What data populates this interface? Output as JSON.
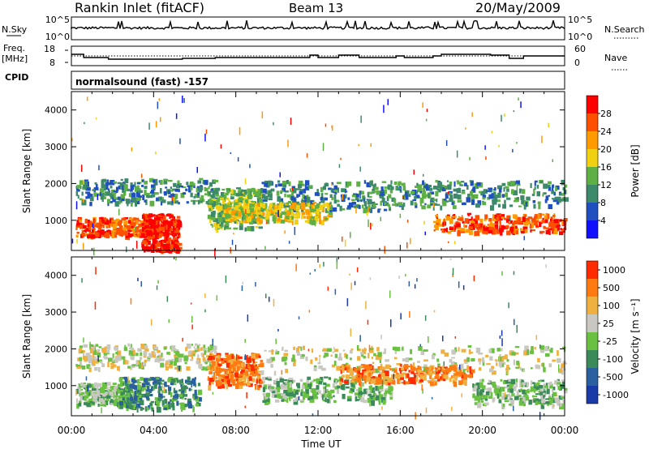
{
  "header": {
    "title": "Rankin Inlet (fitACF)",
    "beam": "Beam 13",
    "date": "20/May/2009"
  },
  "summary": {
    "nsky_label": "N.Sky",
    "nsky_ticks": [
      "10^5",
      "10^0"
    ],
    "nsearch_label": "N.Search",
    "nsearch_ticks": [
      "10^5",
      "10^0"
    ],
    "freq_label": "Freq.",
    "freq_unit": "[MHz]",
    "freq_ticks": [
      "18",
      "8"
    ],
    "nave_label": "Nave",
    "nave_ticks": [
      "60",
      "0"
    ],
    "cpid_label": "CPID",
    "cpid_value": "normalsound (fast) -157"
  },
  "chart_data": [
    {
      "type": "heatmap",
      "name": "power",
      "ylabel": "Slant Range [km]",
      "xlabel": "Time UT",
      "xticks": [
        "00:00",
        "04:00",
        "08:00",
        "12:00",
        "16:00",
        "20:00",
        "00:00"
      ],
      "xlim_hours": [
        0,
        24
      ],
      "yticks": [
        1000,
        2000,
        3000,
        4000
      ],
      "ylim": [
        180,
        4500
      ],
      "colorbar": {
        "label": "Power [dB]",
        "ticks": [
          "4",
          "8",
          "12",
          "16",
          "20",
          "24",
          "28"
        ],
        "colors": [
          "#1010ff",
          "#2050c0",
          "#3d8a6a",
          "#5fb044",
          "#f0d010",
          "#ff9a00",
          "#ff5000",
          "#ff0000"
        ]
      },
      "bands": [
        {
          "t0": 0.2,
          "t1": 4.2,
          "r0": 600,
          "r1": 1100,
          "cls": 6
        },
        {
          "t0": 3.4,
          "t1": 5.2,
          "r0": 180,
          "r1": 1200,
          "cls": 7
        },
        {
          "t0": 0.2,
          "t1": 7.0,
          "r0": 1500,
          "r1": 2150,
          "cls": 2
        },
        {
          "t0": 6.6,
          "t1": 9.2,
          "r0": 800,
          "r1": 1900,
          "cls": 3
        },
        {
          "t0": 9.2,
          "t1": 15.6,
          "r0": 1300,
          "r1": 2100,
          "cls": 2
        },
        {
          "t0": 15.6,
          "t1": 24.0,
          "r0": 1400,
          "r1": 2100,
          "cls": 2
        },
        {
          "t0": 17.6,
          "t1": 24.0,
          "r0": 700,
          "r1": 1200,
          "cls": 6
        },
        {
          "t0": 7.4,
          "t1": 12.6,
          "r0": 1000,
          "r1": 1500,
          "cls": 4
        }
      ]
    },
    {
      "type": "heatmap",
      "name": "velocity",
      "ylabel": "Slant Range [km]",
      "xlabel": "Time UT",
      "xticks": [
        "00:00",
        "04:00",
        "08:00",
        "12:00",
        "16:00",
        "20:00",
        "00:00"
      ],
      "xlim_hours": [
        0,
        24
      ],
      "yticks": [
        1000,
        2000,
        3000,
        4000
      ],
      "ylim": [
        180,
        4500
      ],
      "colorbar": {
        "label": "Velocity [m s⁻¹]",
        "ticks": [
          "1000",
          "500",
          "100",
          "25",
          "-25",
          "-100",
          "-500",
          "-1000"
        ],
        "colors": [
          "#1a3aa8",
          "#2a60a0",
          "#3a8a5a",
          "#6ac040",
          "#c8c8c0",
          "#f0b040",
          "#ff7a10",
          "#ff2a00"
        ]
      },
      "bands": [
        {
          "t0": 0.2,
          "t1": 7.0,
          "r0": 1500,
          "r1": 2150,
          "cls": 4
        },
        {
          "t0": 9.2,
          "t1": 24.0,
          "r0": 1400,
          "r1": 2100,
          "cls": 4
        },
        {
          "t0": 0.2,
          "t1": 3.4,
          "r0": 500,
          "r1": 1100,
          "cls": 3
        },
        {
          "t0": 2.2,
          "t1": 6.2,
          "r0": 400,
          "r1": 1250,
          "cls": 2
        },
        {
          "t0": 6.6,
          "t1": 9.2,
          "r0": 1000,
          "r1": 1900,
          "cls": 6
        },
        {
          "t0": 9.2,
          "t1": 15.6,
          "r0": 600,
          "r1": 1250,
          "cls": 3
        },
        {
          "t0": 13.0,
          "t1": 19.5,
          "r0": 1100,
          "r1": 1600,
          "cls": 6
        },
        {
          "t0": 19.5,
          "t1": 24.0,
          "r0": 500,
          "r1": 1200,
          "cls": 3
        }
      ]
    }
  ]
}
